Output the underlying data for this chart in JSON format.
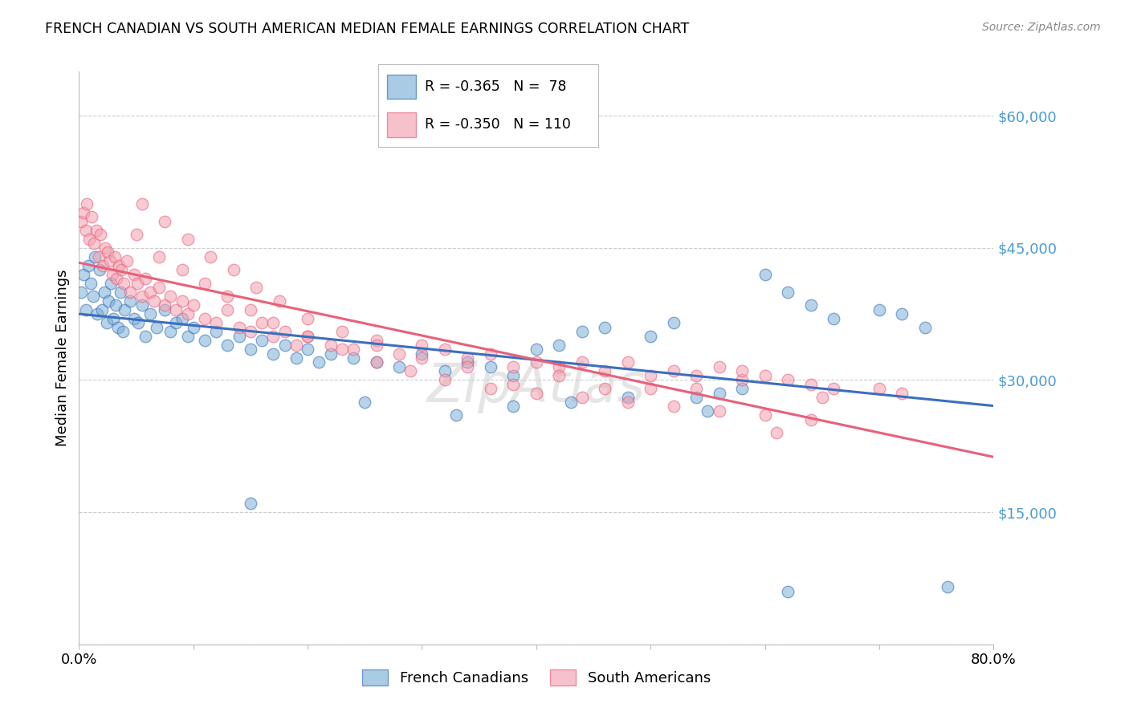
{
  "title": "FRENCH CANADIAN VS SOUTH AMERICAN MEDIAN FEMALE EARNINGS CORRELATION CHART",
  "source": "Source: ZipAtlas.com",
  "ylabel": "Median Female Earnings",
  "blue_R": "-0.365",
  "blue_N": "78",
  "pink_R": "-0.350",
  "pink_N": "110",
  "blue_color": "#7BAFD4",
  "pink_color": "#F4A0B0",
  "blue_line_color": "#3B6FBE",
  "pink_line_color": "#E8607A",
  "legend_label_blue": "French Canadians",
  "legend_label_pink": "South Americans",
  "watermark": "ZipAtlas",
  "ytick_color": "#4B9CD3",
  "blue_scatter_x": [
    0.002,
    0.004,
    0.006,
    0.008,
    0.01,
    0.012,
    0.014,
    0.016,
    0.018,
    0.02,
    0.022,
    0.024,
    0.026,
    0.028,
    0.03,
    0.032,
    0.034,
    0.036,
    0.038,
    0.04,
    0.045,
    0.048,
    0.052,
    0.055,
    0.058,
    0.062,
    0.068,
    0.075,
    0.08,
    0.085,
    0.09,
    0.095,
    0.1,
    0.11,
    0.12,
    0.13,
    0.14,
    0.15,
    0.16,
    0.17,
    0.18,
    0.19,
    0.2,
    0.21,
    0.22,
    0.24,
    0.26,
    0.28,
    0.3,
    0.32,
    0.34,
    0.36,
    0.38,
    0.4,
    0.42,
    0.44,
    0.46,
    0.48,
    0.5,
    0.52,
    0.54,
    0.56,
    0.58,
    0.6,
    0.62,
    0.64,
    0.66,
    0.7,
    0.72,
    0.74,
    0.38,
    0.25,
    0.15,
    0.43,
    0.33,
    0.55,
    0.62,
    0.76
  ],
  "blue_scatter_y": [
    40000,
    42000,
    38000,
    43000,
    41000,
    39500,
    44000,
    37500,
    42500,
    38000,
    40000,
    36500,
    39000,
    41000,
    37000,
    38500,
    36000,
    40000,
    35500,
    38000,
    39000,
    37000,
    36500,
    38500,
    35000,
    37500,
    36000,
    38000,
    35500,
    36500,
    37000,
    35000,
    36000,
    34500,
    35500,
    34000,
    35000,
    33500,
    34500,
    33000,
    34000,
    32500,
    33500,
    32000,
    33000,
    32500,
    32000,
    31500,
    33000,
    31000,
    32000,
    31500,
    30500,
    33500,
    34000,
    35500,
    36000,
    28000,
    35000,
    36500,
    28000,
    28500,
    29000,
    42000,
    40000,
    38500,
    37000,
    38000,
    37500,
    36000,
    27000,
    27500,
    16000,
    27500,
    26000,
    26500,
    6000,
    6500
  ],
  "pink_scatter_x": [
    0.002,
    0.004,
    0.006,
    0.007,
    0.009,
    0.011,
    0.013,
    0.015,
    0.017,
    0.019,
    0.021,
    0.023,
    0.025,
    0.027,
    0.029,
    0.031,
    0.033,
    0.035,
    0.037,
    0.039,
    0.042,
    0.045,
    0.048,
    0.051,
    0.055,
    0.058,
    0.062,
    0.066,
    0.07,
    0.075,
    0.08,
    0.085,
    0.09,
    0.095,
    0.1,
    0.11,
    0.12,
    0.13,
    0.14,
    0.15,
    0.16,
    0.17,
    0.18,
    0.19,
    0.2,
    0.22,
    0.24,
    0.26,
    0.28,
    0.3,
    0.32,
    0.34,
    0.36,
    0.38,
    0.4,
    0.42,
    0.44,
    0.46,
    0.48,
    0.5,
    0.52,
    0.54,
    0.56,
    0.58,
    0.6,
    0.62,
    0.64,
    0.66,
    0.7,
    0.72,
    0.05,
    0.07,
    0.09,
    0.11,
    0.13,
    0.15,
    0.17,
    0.2,
    0.23,
    0.26,
    0.29,
    0.32,
    0.36,
    0.4,
    0.44,
    0.48,
    0.52,
    0.56,
    0.6,
    0.64,
    0.055,
    0.075,
    0.095,
    0.115,
    0.135,
    0.155,
    0.175,
    0.2,
    0.23,
    0.26,
    0.3,
    0.34,
    0.38,
    0.42,
    0.46,
    0.5,
    0.54,
    0.58,
    0.61,
    0.65
  ],
  "pink_scatter_y": [
    48000,
    49000,
    47000,
    50000,
    46000,
    48500,
    45500,
    47000,
    44000,
    46500,
    43000,
    45000,
    44500,
    43500,
    42000,
    44000,
    41500,
    43000,
    42500,
    41000,
    43500,
    40000,
    42000,
    41000,
    39500,
    41500,
    40000,
    39000,
    40500,
    38500,
    39500,
    38000,
    39000,
    37500,
    38500,
    37000,
    36500,
    38000,
    36000,
    35500,
    36500,
    35000,
    35500,
    34000,
    35000,
    34000,
    33500,
    34500,
    33000,
    34000,
    33500,
    32500,
    33000,
    31500,
    32000,
    31500,
    32000,
    31000,
    32000,
    30500,
    31000,
    30500,
    31500,
    30000,
    30500,
    30000,
    29500,
    29000,
    29000,
    28500,
    46500,
    44000,
    42500,
    41000,
    39500,
    38000,
    36500,
    35000,
    33500,
    32000,
    31000,
    30000,
    29000,
    28500,
    28000,
    27500,
    27000,
    26500,
    26000,
    25500,
    50000,
    48000,
    46000,
    44000,
    42500,
    40500,
    39000,
    37000,
    35500,
    34000,
    32500,
    31500,
    29500,
    30500,
    29000,
    29000,
    29000,
    31000,
    24000,
    28000
  ]
}
